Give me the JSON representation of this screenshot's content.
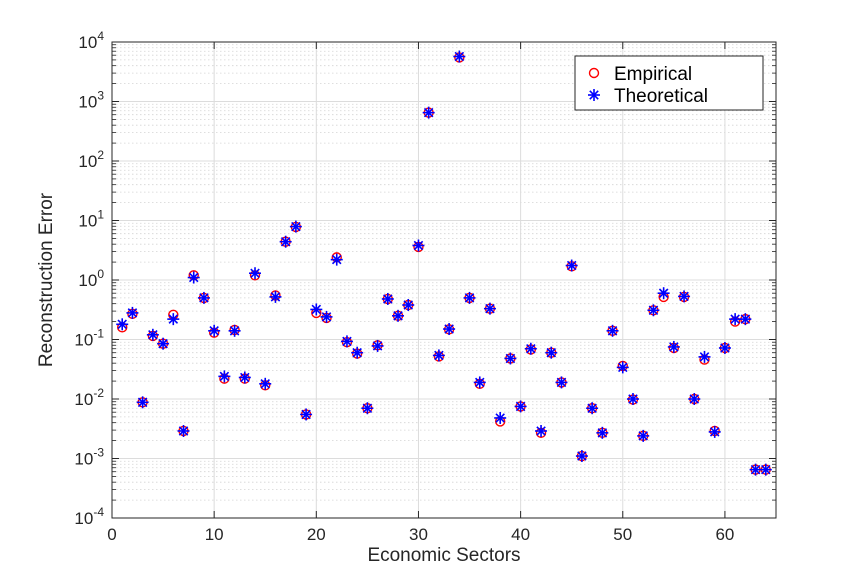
{
  "chart_data": {
    "type": "scatter",
    "title": "",
    "xlabel": "Economic Sectors",
    "ylabel": "Reconstruction Error",
    "xlim": [
      0,
      65
    ],
    "ylim": [
      0.0001,
      10000
    ],
    "yscale": "log",
    "grid": true,
    "minor_grid": true,
    "legend_position": "top-right",
    "x_ticks": [
      {
        "value": 0,
        "label": "0"
      },
      {
        "value": 10,
        "label": "10"
      },
      {
        "value": 20,
        "label": "20"
      },
      {
        "value": 30,
        "label": "30"
      },
      {
        "value": 40,
        "label": "40"
      },
      {
        "value": 50,
        "label": "50"
      },
      {
        "value": 60,
        "label": "60"
      }
    ],
    "y_ticks": [
      {
        "value": 0.0001,
        "base": "10",
        "exp": "-4"
      },
      {
        "value": 0.001,
        "base": "10",
        "exp": "-3"
      },
      {
        "value": 0.01,
        "base": "10",
        "exp": "-2"
      },
      {
        "value": 0.1,
        "base": "10",
        "exp": "-1"
      },
      {
        "value": 1,
        "base": "10",
        "exp": "0"
      },
      {
        "value": 10,
        "base": "10",
        "exp": "1"
      },
      {
        "value": 100,
        "base": "10",
        "exp": "2"
      },
      {
        "value": 1000,
        "base": "10",
        "exp": "3"
      },
      {
        "value": 10000,
        "base": "10",
        "exp": "4"
      }
    ],
    "x": [
      1,
      2,
      3,
      4,
      5,
      6,
      7,
      8,
      9,
      10,
      11,
      12,
      13,
      14,
      15,
      16,
      17,
      18,
      19,
      20,
      21,
      22,
      23,
      24,
      25,
      26,
      27,
      28,
      29,
      30,
      31,
      32,
      33,
      34,
      35,
      36,
      37,
      38,
      39,
      40,
      41,
      42,
      43,
      44,
      45,
      46,
      47,
      48,
      49,
      50,
      51,
      52,
      53,
      54,
      55,
      56,
      57,
      58,
      59,
      60,
      61,
      62,
      63,
      64
    ],
    "series": [
      {
        "name": "Empirical",
        "marker": "circle",
        "color": "#ff0000",
        "values": [
          0.16,
          0.27,
          0.0088,
          0.115,
          0.085,
          0.26,
          0.0029,
          1.2,
          0.5,
          0.13,
          0.022,
          0.145,
          0.022,
          1.2,
          0.017,
          0.55,
          4.4,
          7.8,
          0.0055,
          0.28,
          0.23,
          2.4,
          0.09,
          0.058,
          0.007,
          0.08,
          0.48,
          0.25,
          0.38,
          3.6,
          650,
          0.052,
          0.148,
          5500,
          0.5,
          0.018,
          0.33,
          0.0042,
          0.048,
          0.0075,
          0.068,
          0.0027,
          0.06,
          0.019,
          1.7,
          0.0011,
          0.007,
          0.0027,
          0.14,
          0.036,
          0.0098,
          0.0024,
          0.31,
          0.52,
          0.072,
          0.52,
          0.01,
          0.046,
          0.0029,
          0.072,
          0.2,
          0.22,
          0.00065,
          0.00065
        ]
      },
      {
        "name": "Theoretical",
        "marker": "asterisk",
        "color": "#0000ff",
        "values": [
          0.18,
          0.28,
          0.0088,
          0.12,
          0.085,
          0.22,
          0.0029,
          1.1,
          0.5,
          0.14,
          0.024,
          0.14,
          0.023,
          1.3,
          0.018,
          0.52,
          4.4,
          7.9,
          0.0055,
          0.32,
          0.24,
          2.2,
          0.093,
          0.06,
          0.007,
          0.078,
          0.48,
          0.25,
          0.38,
          3.8,
          650,
          0.054,
          0.15,
          5700,
          0.5,
          0.019,
          0.33,
          0.0048,
          0.048,
          0.0075,
          0.07,
          0.0029,
          0.06,
          0.019,
          1.75,
          0.0011,
          0.007,
          0.0027,
          0.14,
          0.034,
          0.01,
          0.0024,
          0.31,
          0.6,
          0.075,
          0.53,
          0.01,
          0.051,
          0.0028,
          0.072,
          0.22,
          0.22,
          0.00065,
          0.00065
        ]
      }
    ]
  }
}
